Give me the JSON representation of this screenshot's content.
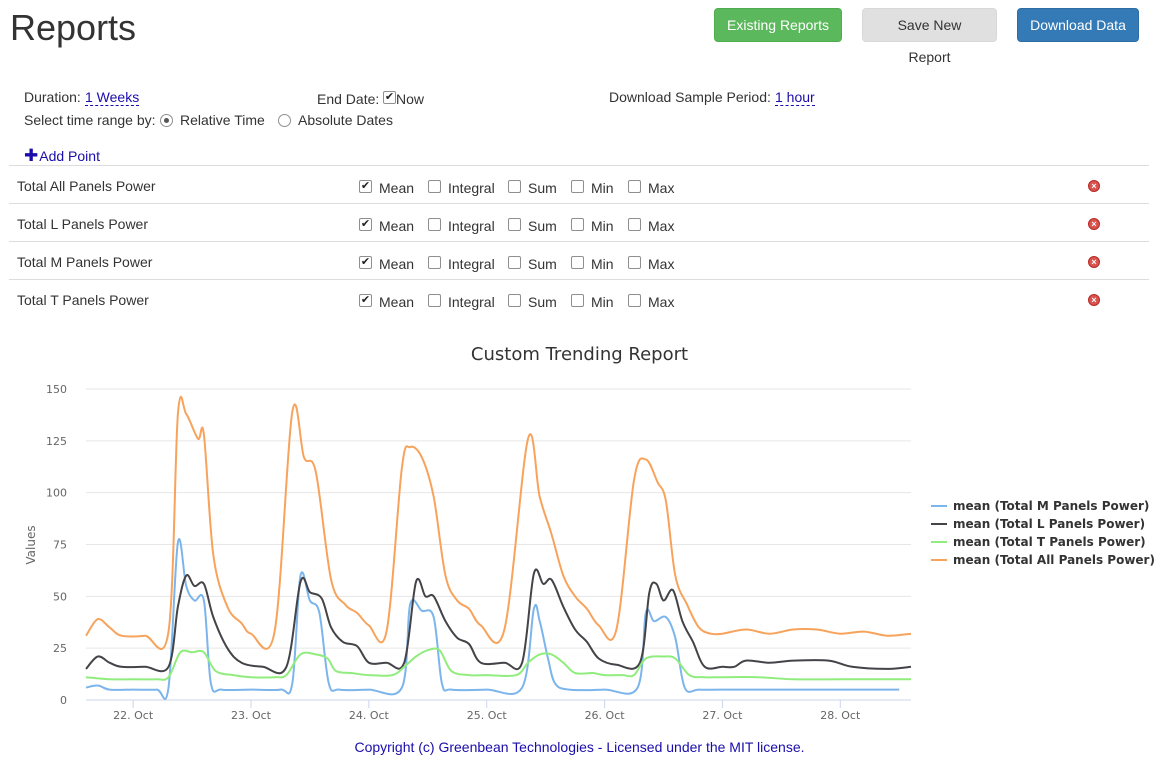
{
  "page": {
    "title": "Reports"
  },
  "toolbar": {
    "existing_reports": "Existing Reports",
    "save_new_report": "Save New Report",
    "download_data": "Download Data"
  },
  "settings": {
    "duration_label": "Duration:",
    "duration_value": "1 Weeks",
    "end_date_label": "End Date:",
    "end_date_now": "Now",
    "end_date_now_checked": true,
    "sample_period_label": "Download Sample Period:",
    "sample_period_value": "1 hour",
    "time_range_label": "Select time range by:",
    "relative_time": "Relative Time",
    "absolute_dates": "Absolute Dates",
    "selected_range_mode": "Relative Time"
  },
  "add_point": "Add Point",
  "points": [
    {
      "name": "Total All Panels Power",
      "mean": "Mean",
      "integral": "Integral",
      "sum": "Sum",
      "min": "Min",
      "max": "Max",
      "checked": [
        "Mean"
      ]
    },
    {
      "name": "Total L Panels Power",
      "mean": "Mean",
      "integral": "Integral",
      "sum": "Sum",
      "min": "Min",
      "max": "Max",
      "checked": [
        "Mean"
      ]
    },
    {
      "name": "Total M Panels Power",
      "mean": "Mean",
      "integral": "Integral",
      "sum": "Sum",
      "min": "Min",
      "max": "Max",
      "checked": [
        "Mean"
      ]
    },
    {
      "name": "Total T Panels Power",
      "mean": "Mean",
      "integral": "Integral",
      "sum": "Sum",
      "min": "Min",
      "max": "Max",
      "checked": [
        "Mean"
      ]
    }
  ],
  "colors": {
    "green_button": "#5cb85c",
    "blue_button": "#337ab7",
    "link": "#1a0dab",
    "remove": "#d9534f"
  },
  "chart_data": {
    "type": "line",
    "title": "Custom Trending Report",
    "ylabel": "Values",
    "xlabel": "",
    "ylim": [
      0,
      150
    ],
    "y_ticks": [
      "0",
      "25",
      "50",
      "75",
      "100",
      "125",
      "150"
    ],
    "x_tick_labels": [
      "22. Oct",
      "23. Oct",
      "24. Oct",
      "25. Oct",
      "26. Oct",
      "27. Oct",
      "28. Oct"
    ],
    "x_range_days": [
      21.6,
      28.6
    ],
    "grid": true,
    "legend_position": "right",
    "series": [
      {
        "name": "mean (Total M Panels Power)",
        "color": "#7cb5ec",
        "points": [
          [
            21.6,
            6
          ],
          [
            21.7,
            7
          ],
          [
            21.8,
            5
          ],
          [
            22.0,
            5
          ],
          [
            22.2,
            5
          ],
          [
            22.3,
            6
          ],
          [
            22.38,
            76
          ],
          [
            22.45,
            55
          ],
          [
            22.52,
            48
          ],
          [
            22.6,
            48
          ],
          [
            22.66,
            8
          ],
          [
            22.75,
            5
          ],
          [
            23.0,
            5
          ],
          [
            23.25,
            5
          ],
          [
            23.35,
            8
          ],
          [
            23.42,
            60
          ],
          [
            23.5,
            48
          ],
          [
            23.58,
            42
          ],
          [
            23.66,
            8
          ],
          [
            23.75,
            5
          ],
          [
            24.0,
            5
          ],
          [
            24.28,
            6
          ],
          [
            24.35,
            46
          ],
          [
            24.45,
            43
          ],
          [
            24.55,
            40
          ],
          [
            24.62,
            8
          ],
          [
            24.7,
            5
          ],
          [
            25.0,
            5
          ],
          [
            25.3,
            6
          ],
          [
            25.4,
            44
          ],
          [
            25.45,
            38
          ],
          [
            25.52,
            20
          ],
          [
            25.58,
            8
          ],
          [
            25.7,
            5
          ],
          [
            26.0,
            5
          ],
          [
            26.28,
            6
          ],
          [
            26.35,
            42
          ],
          [
            26.42,
            38
          ],
          [
            26.52,
            40
          ],
          [
            26.6,
            30
          ],
          [
            26.68,
            6
          ],
          [
            26.8,
            5
          ],
          [
            27.0,
            5
          ],
          [
            27.5,
            5
          ],
          [
            28.0,
            5
          ],
          [
            28.5,
            5
          ]
        ]
      },
      {
        "name": "mean (Total L Panels Power)",
        "color": "#434348",
        "points": [
          [
            21.6,
            15
          ],
          [
            21.7,
            21
          ],
          [
            21.8,
            18
          ],
          [
            21.9,
            16
          ],
          [
            22.1,
            16
          ],
          [
            22.3,
            16
          ],
          [
            22.38,
            45
          ],
          [
            22.45,
            60
          ],
          [
            22.52,
            55
          ],
          [
            22.6,
            56
          ],
          [
            22.68,
            40
          ],
          [
            22.8,
            25
          ],
          [
            22.92,
            18
          ],
          [
            23.1,
            16
          ],
          [
            23.3,
            16
          ],
          [
            23.42,
            57
          ],
          [
            23.5,
            52
          ],
          [
            23.6,
            49
          ],
          [
            23.68,
            35
          ],
          [
            23.78,
            28
          ],
          [
            23.9,
            26
          ],
          [
            24.0,
            18
          ],
          [
            24.15,
            18
          ],
          [
            24.3,
            18
          ],
          [
            24.4,
            57
          ],
          [
            24.48,
            50
          ],
          [
            24.55,
            50
          ],
          [
            24.65,
            38
          ],
          [
            24.75,
            30
          ],
          [
            24.85,
            27
          ],
          [
            24.95,
            18
          ],
          [
            25.15,
            18
          ],
          [
            25.3,
            18
          ],
          [
            25.4,
            61
          ],
          [
            25.48,
            56
          ],
          [
            25.55,
            58
          ],
          [
            25.65,
            45
          ],
          [
            25.75,
            34
          ],
          [
            25.85,
            28
          ],
          [
            25.95,
            20
          ],
          [
            26.1,
            17
          ],
          [
            26.3,
            18
          ],
          [
            26.38,
            52
          ],
          [
            26.44,
            56
          ],
          [
            26.5,
            48
          ],
          [
            26.58,
            53
          ],
          [
            26.66,
            38
          ],
          [
            26.75,
            28
          ],
          [
            26.85,
            16
          ],
          [
            27.0,
            16
          ],
          [
            27.1,
            16
          ],
          [
            27.2,
            19
          ],
          [
            27.4,
            18
          ],
          [
            27.6,
            19
          ],
          [
            27.9,
            19
          ],
          [
            28.1,
            16
          ],
          [
            28.4,
            15
          ],
          [
            28.6,
            16
          ]
        ]
      },
      {
        "name": "mean (Total T Panels Power)",
        "color": "#90ed7d",
        "points": [
          [
            21.6,
            11
          ],
          [
            21.8,
            10
          ],
          [
            22.0,
            10
          ],
          [
            22.2,
            10
          ],
          [
            22.3,
            11
          ],
          [
            22.4,
            23
          ],
          [
            22.5,
            23
          ],
          [
            22.6,
            23
          ],
          [
            22.7,
            14
          ],
          [
            22.85,
            12
          ],
          [
            23.0,
            11
          ],
          [
            23.2,
            11
          ],
          [
            23.3,
            12
          ],
          [
            23.42,
            22
          ],
          [
            23.55,
            22
          ],
          [
            23.65,
            20
          ],
          [
            23.72,
            14
          ],
          [
            23.85,
            13
          ],
          [
            24.0,
            12
          ],
          [
            24.2,
            12
          ],
          [
            24.3,
            16
          ],
          [
            24.4,
            21
          ],
          [
            24.5,
            24
          ],
          [
            24.6,
            24
          ],
          [
            24.7,
            14
          ],
          [
            24.85,
            12
          ],
          [
            25.0,
            12
          ],
          [
            25.25,
            12
          ],
          [
            25.35,
            18
          ],
          [
            25.45,
            22
          ],
          [
            25.55,
            22
          ],
          [
            25.65,
            18
          ],
          [
            25.75,
            13
          ],
          [
            25.9,
            13
          ],
          [
            26.0,
            12
          ],
          [
            26.15,
            12
          ],
          [
            26.25,
            12
          ],
          [
            26.35,
            20
          ],
          [
            26.5,
            21
          ],
          [
            26.6,
            20
          ],
          [
            26.72,
            12
          ],
          [
            26.85,
            11
          ],
          [
            27.0,
            11
          ],
          [
            27.3,
            11
          ],
          [
            27.6,
            10
          ],
          [
            28.0,
            10
          ],
          [
            28.3,
            10
          ],
          [
            28.6,
            10
          ]
        ]
      },
      {
        "name": "mean (Total All Panels Power)",
        "color": "#f7a35c",
        "points": [
          [
            21.6,
            31
          ],
          [
            21.7,
            39
          ],
          [
            21.8,
            35
          ],
          [
            21.9,
            31
          ],
          [
            22.1,
            31
          ],
          [
            22.3,
            33
          ],
          [
            22.38,
            138
          ],
          [
            22.45,
            138
          ],
          [
            22.55,
            126
          ],
          [
            22.6,
            128
          ],
          [
            22.68,
            70
          ],
          [
            22.8,
            45
          ],
          [
            22.92,
            37
          ],
          [
            23.0,
            32
          ],
          [
            23.2,
            33
          ],
          [
            23.35,
            139
          ],
          [
            23.45,
            117
          ],
          [
            23.55,
            110
          ],
          [
            23.68,
            58
          ],
          [
            23.8,
            46
          ],
          [
            23.9,
            42
          ],
          [
            24.0,
            36
          ],
          [
            24.15,
            33
          ],
          [
            24.28,
            112
          ],
          [
            24.35,
            122
          ],
          [
            24.45,
            117
          ],
          [
            24.55,
            98
          ],
          [
            24.65,
            60
          ],
          [
            24.75,
            48
          ],
          [
            24.85,
            44
          ],
          [
            24.95,
            36
          ],
          [
            25.15,
            34
          ],
          [
            25.35,
            126
          ],
          [
            25.45,
            98
          ],
          [
            25.55,
            80
          ],
          [
            25.65,
            60
          ],
          [
            25.75,
            50
          ],
          [
            25.85,
            44
          ],
          [
            25.95,
            36
          ],
          [
            26.1,
            34
          ],
          [
            26.25,
            106
          ],
          [
            26.35,
            116
          ],
          [
            26.45,
            105
          ],
          [
            26.52,
            96
          ],
          [
            26.6,
            60
          ],
          [
            26.7,
            46
          ],
          [
            26.8,
            35
          ],
          [
            26.9,
            32
          ],
          [
            27.0,
            32
          ],
          [
            27.2,
            34
          ],
          [
            27.4,
            32
          ],
          [
            27.6,
            34
          ],
          [
            27.8,
            34
          ],
          [
            28.0,
            32
          ],
          [
            28.2,
            33
          ],
          [
            28.4,
            31
          ],
          [
            28.6,
            32
          ]
        ]
      }
    ]
  },
  "footer": "Copyright (c) Greenbean Technologies - Licensed under the MIT license."
}
